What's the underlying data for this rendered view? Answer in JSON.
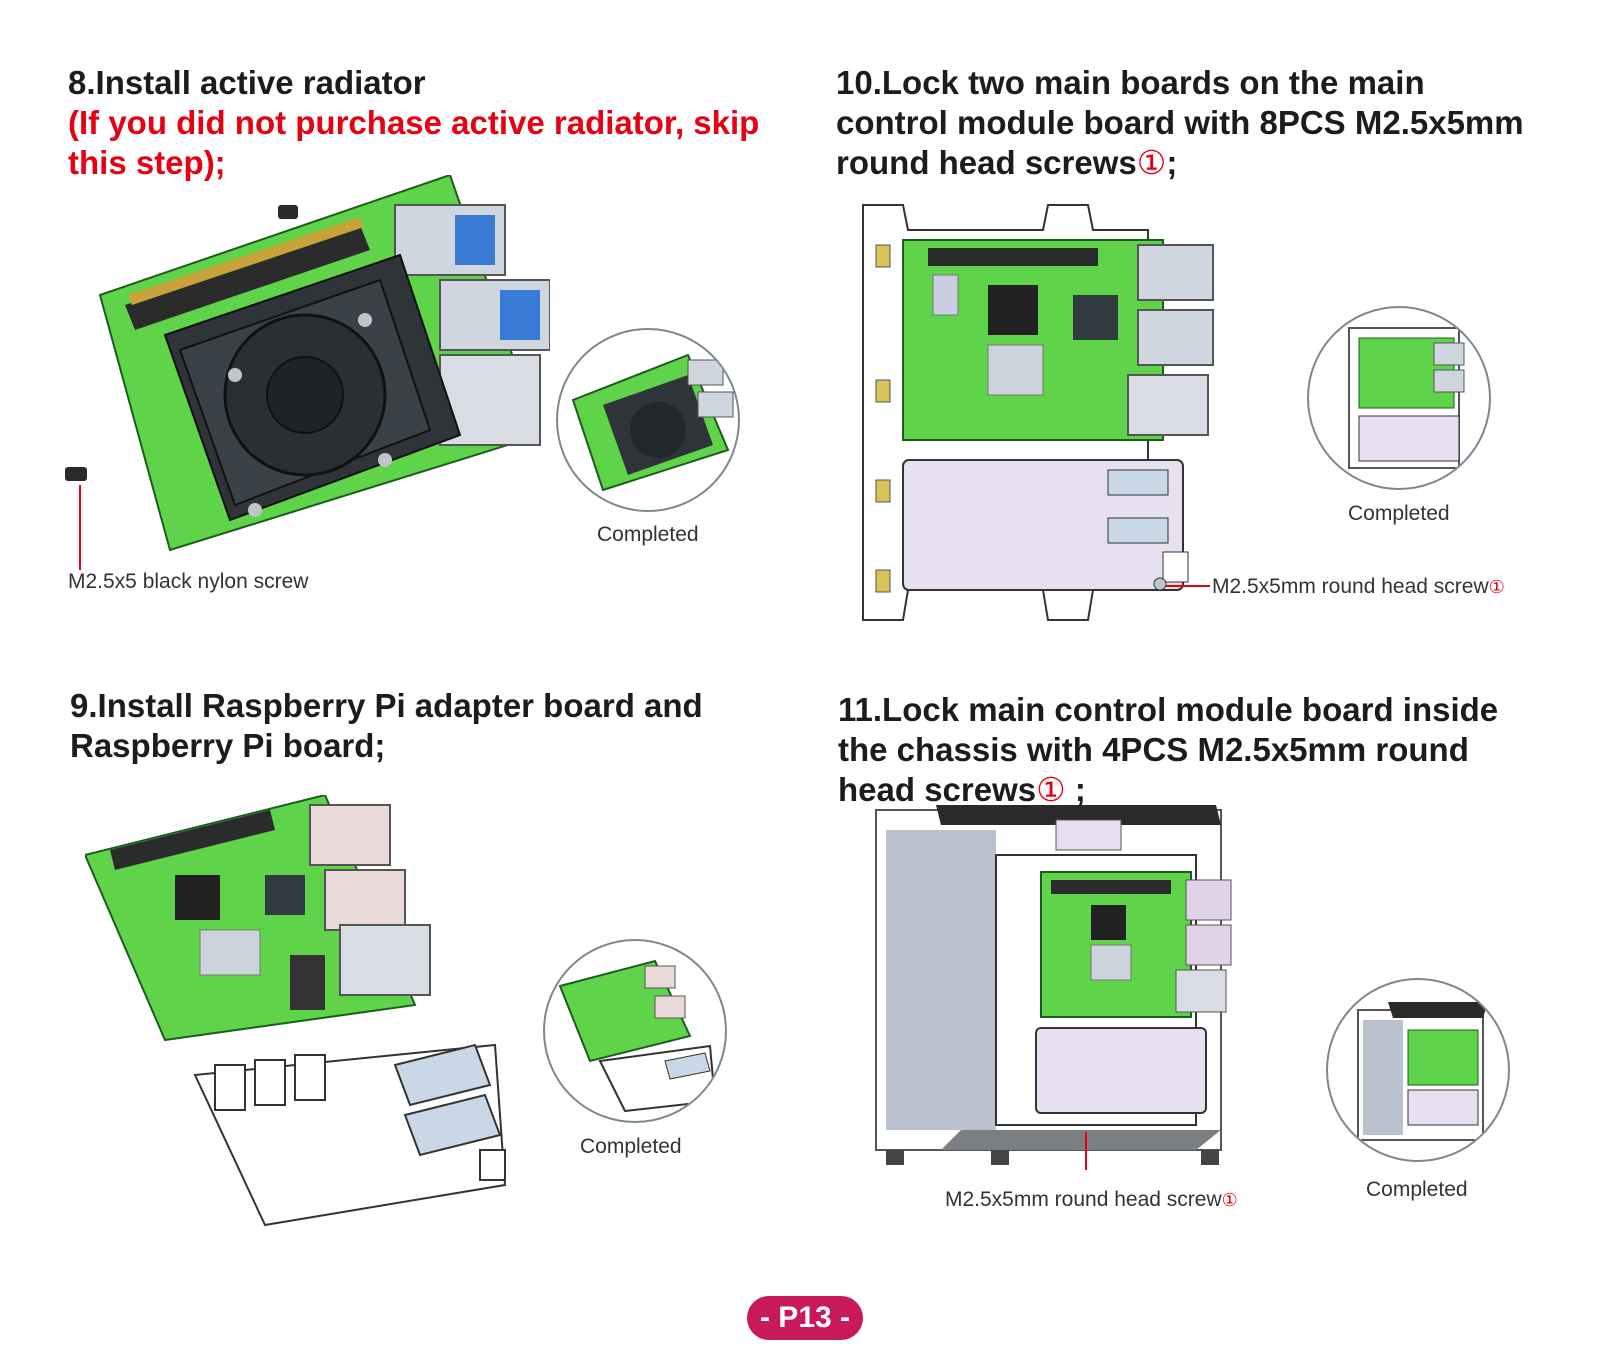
{
  "steps": {
    "step8": {
      "title": "8.Install active radiator",
      "warning": "(If you did not purchase active radiator, skip this step);",
      "screw_label": "M2.5x5 black nylon screw",
      "completed_label": "Completed"
    },
    "step9": {
      "title": "9.Install Raspberry Pi adapter board and Raspberry Pi board;",
      "completed_label": "Completed"
    },
    "step10": {
      "title_prefix": "10.Lock two main boards on the main control module board with 8PCS M2.5x5mm round head screws",
      "title_mark": "①",
      "title_suffix": ";",
      "screw_label": "M2.5x5mm round head screw",
      "screw_mark": "①",
      "completed_label": "Completed"
    },
    "step11": {
      "title_prefix": "11.Lock main control module board inside the chassis with 4PCS M2.5x5mm round head screws",
      "title_mark": "①",
      "title_suffix": " ;",
      "screw_label": "M2.5x5mm round head screw",
      "screw_mark": "①",
      "completed_label": "Completed"
    }
  },
  "page_number": "- P13 -",
  "colors": {
    "board_green": "#5fd44a",
    "accent_red": "#e60012",
    "badge": "#c8195a",
    "plate": "#e6e0f0"
  }
}
